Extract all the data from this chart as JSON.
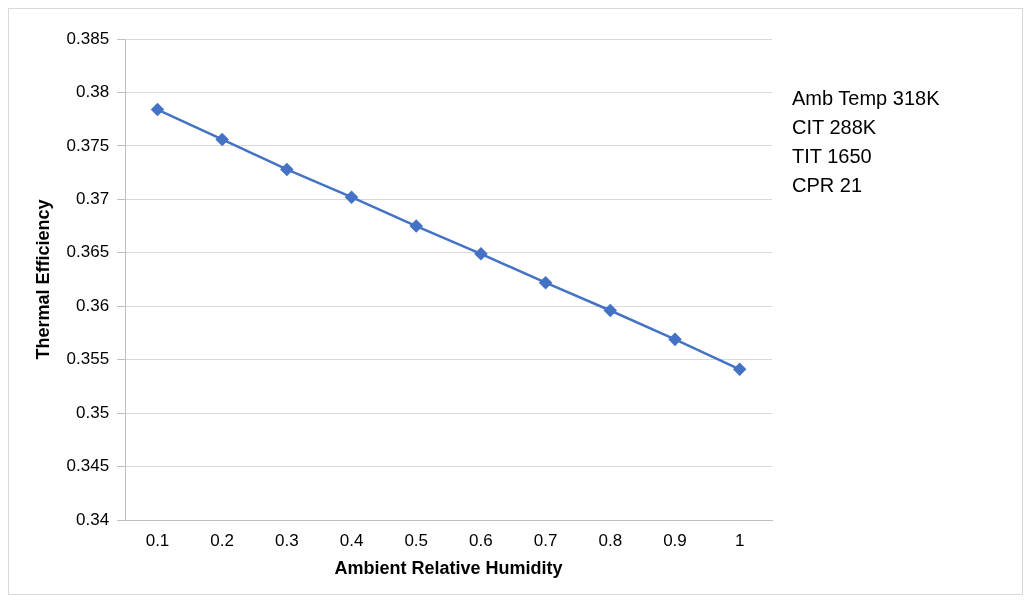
{
  "chart_data": {
    "type": "line",
    "xlabel": "Ambient Relative Humidity",
    "ylabel": "Thermal Efficiency",
    "categories": [
      "0.1",
      "0.2",
      "0.3",
      "0.4",
      "0.5",
      "0.6",
      "0.7",
      "0.8",
      "0.9",
      "1"
    ],
    "series": [
      {
        "color": "#4472c4",
        "values": [
          0.3784,
          0.3756,
          0.3728,
          0.3702,
          0.3675,
          0.3649,
          0.3622,
          0.3596,
          0.3569,
          0.3541
        ]
      }
    ],
    "ylim": [
      0.34,
      0.385
    ],
    "yticks": [
      0.34,
      0.345,
      0.35,
      0.355,
      0.36,
      0.365,
      0.37,
      0.375,
      0.38,
      0.385
    ],
    "grid": "y",
    "marker": "diamond",
    "line_style": "solid",
    "legend": false,
    "annotations": [
      "Amb Temp 318K",
      "CIT 288K",
      "TIT 1650",
      "CPR 21"
    ]
  }
}
